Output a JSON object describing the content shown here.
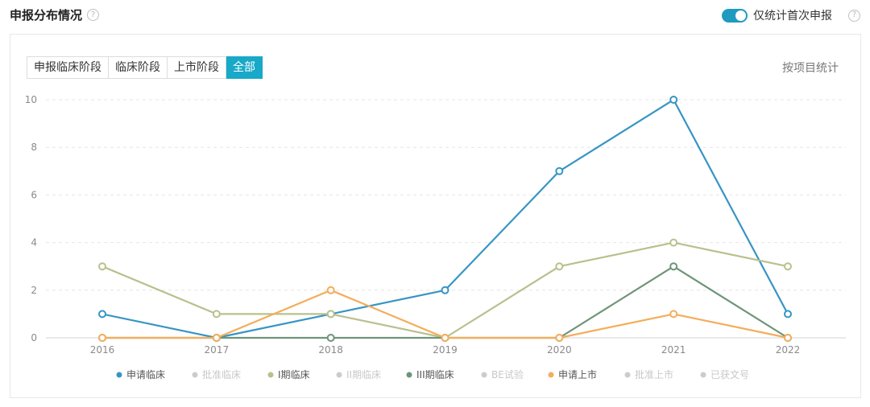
{
  "header": {
    "title": "申报分布情况",
    "help_glyph": "?"
  },
  "toggle": {
    "label": "仅统计首次申报",
    "on": true,
    "help_glyph": "?"
  },
  "tabs": [
    {
      "label": "申报临床阶段",
      "active": false
    },
    {
      "label": "临床阶段",
      "active": false
    },
    {
      "label": "上市阶段",
      "active": false
    },
    {
      "label": "全部",
      "active": true
    }
  ],
  "view_link": "按项目统计",
  "colors": {
    "accent": "#18a8c8",
    "toggle": "#1e9bbf"
  },
  "chart_data": {
    "type": "line",
    "title": "",
    "xlabel": "",
    "ylabel": "",
    "x": [
      "2016",
      "2017",
      "2018",
      "2019",
      "2020",
      "2021",
      "2022"
    ],
    "ylim": [
      0,
      10
    ],
    "yticks": [
      0,
      2,
      4,
      6,
      8,
      10
    ],
    "grid": true,
    "legend_position": "bottom",
    "series": [
      {
        "name": "申请临床",
        "color": "#3795c4",
        "active": true,
        "values": [
          1,
          0,
          1,
          2,
          7,
          10,
          1
        ]
      },
      {
        "name": "批准临床",
        "color": "#cccccc",
        "active": false,
        "values": null
      },
      {
        "name": "I期临床",
        "color": "#b9c08d",
        "active": true,
        "values": [
          3,
          1,
          1,
          0,
          3,
          4,
          3
        ]
      },
      {
        "name": "II期临床",
        "color": "#cccccc",
        "active": false,
        "values": null
      },
      {
        "name": "III期临床",
        "color": "#6e9479",
        "active": true,
        "values": [
          0,
          0,
          0,
          0,
          0,
          3,
          0
        ]
      },
      {
        "name": "BE试验",
        "color": "#cccccc",
        "active": false,
        "values": null
      },
      {
        "name": "申请上市",
        "color": "#f4ad5b",
        "active": true,
        "values": [
          0,
          0,
          2,
          0,
          0,
          1,
          0
        ]
      },
      {
        "name": "批准上市",
        "color": "#cccccc",
        "active": false,
        "values": null
      },
      {
        "name": "已获文号",
        "color": "#cccccc",
        "active": false,
        "values": null
      }
    ]
  }
}
